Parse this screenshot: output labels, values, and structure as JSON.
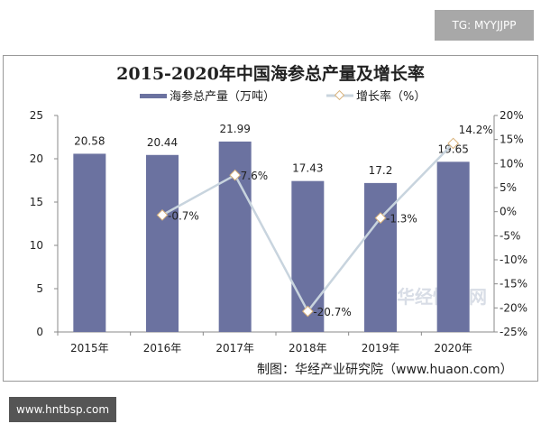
{
  "badge": "TG: MYYJJPP",
  "watermark_bottom": "www.hntbsp.com",
  "chart_data": {
    "type": "bar+line",
    "title": "2015-2020年中国海参总产量及增长率",
    "categories": [
      "2015年",
      "2016年",
      "2017年",
      "2018年",
      "2019年",
      "2020年"
    ],
    "series": [
      {
        "name": "海参总产量（万吨）",
        "type": "bar",
        "axis": "left",
        "values": [
          20.58,
          20.44,
          21.99,
          17.43,
          17.2,
          19.65
        ],
        "labels": [
          "20.58",
          "20.44",
          "21.99",
          "17.43",
          "17.2",
          "19.65"
        ],
        "color": "#6b72a0"
      },
      {
        "name": "增长率（%）",
        "type": "line",
        "axis": "right",
        "values": [
          null,
          -0.7,
          7.6,
          -20.7,
          -1.3,
          14.2
        ],
        "labels": [
          "",
          "-0.7%",
          "7.6%",
          "-20.7%",
          "-1.3%",
          "14.2%"
        ],
        "color": "#c8d4de"
      }
    ],
    "y_left": {
      "range": [
        0,
        25
      ],
      "ticks": [
        "0",
        "5",
        "10",
        "15",
        "20",
        "25"
      ]
    },
    "y_right": {
      "range": [
        -25,
        20
      ],
      "ticks": [
        "-25%",
        "-20%",
        "-15%",
        "-10%",
        "-5%",
        "0%",
        "5%",
        "10%",
        "15%",
        "20%"
      ]
    },
    "legend_placement": "top",
    "grid": false,
    "source": "制图：华经产业研究院（www.huaon.com）",
    "logo_watermark": "华经情报网 huaon.com"
  }
}
